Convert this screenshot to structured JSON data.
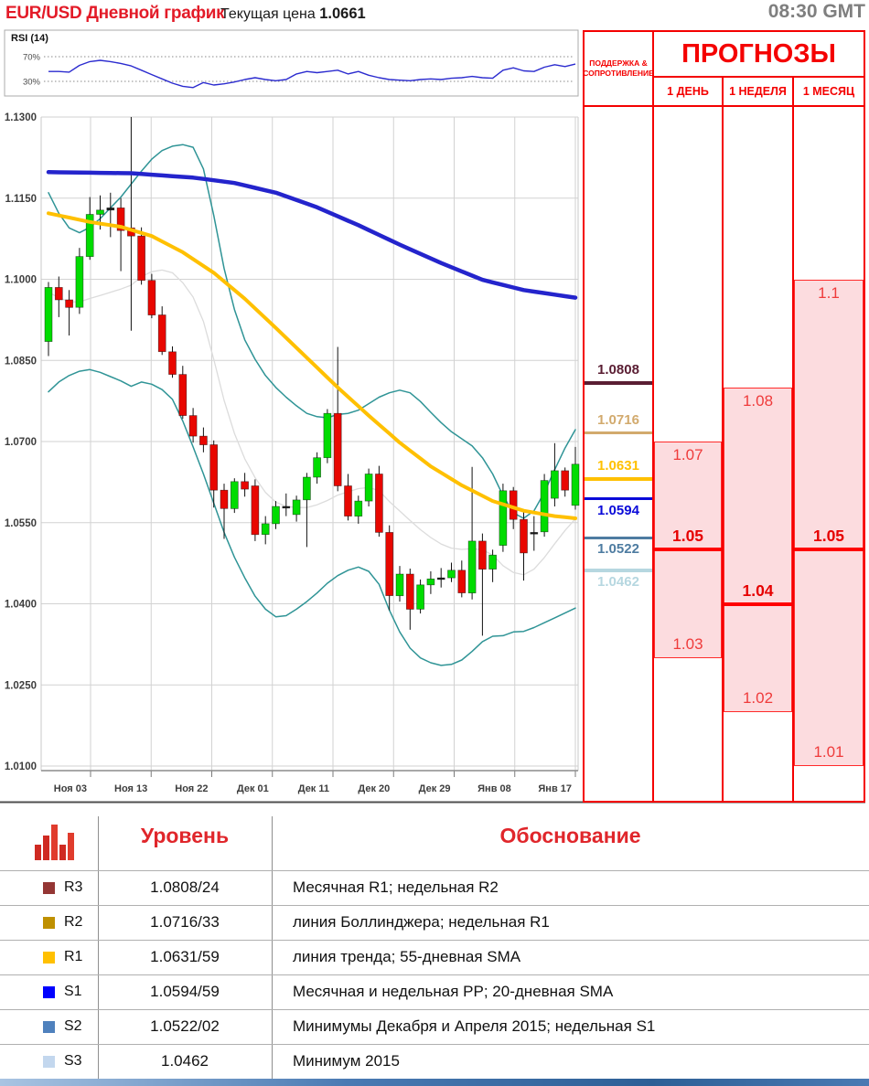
{
  "header": {
    "title": "EUR/USD Дневной график",
    "price_label": "Текущая цена",
    "price_value": "1.0661",
    "time": "08:30 GMT"
  },
  "forecast": {
    "title": "ПРОГНОЗЫ",
    "sr_header_line1": "ПОДДЕРЖКА &",
    "sr_header_line2": "СОПРОТИВЛЕНИЕ",
    "columns": [
      {
        "label": "1 ДЕНЬ",
        "high": 1.07,
        "low": 1.03,
        "pivot": 1.05,
        "high_label": "1.07",
        "low_label": "1.03",
        "pivot_label": "1.05"
      },
      {
        "label": "1 НЕДЕЛЯ",
        "high": 1.08,
        "low": 1.02,
        "pivot": 1.04,
        "high_label": "1.08",
        "low_label": "1.02",
        "pivot_label": "1.04"
      },
      {
        "label": "1 МЕСЯЦ",
        "high": 1.1,
        "low": 1.01,
        "pivot": 1.05,
        "high_label": "1.1",
        "low_label": "1.01",
        "pivot_label": "1.05"
      }
    ]
  },
  "support_resistance": {
    "levels": [
      {
        "id": "R3",
        "price": 1.0808,
        "label": "1.0808",
        "color": "#5a1e33",
        "label_side": "above"
      },
      {
        "id": "R2",
        "price": 1.0716,
        "label": "1.0716",
        "color": "#d2aa6d",
        "label_side": "above"
      },
      {
        "id": "R1",
        "price": 1.0631,
        "label": "1.0631",
        "color": "#ffc000",
        "label_side": "above"
      },
      {
        "id": "S1",
        "price": 1.0594,
        "label": "1.0594",
        "color": "#0a0ad9",
        "label_side": "below"
      },
      {
        "id": "S2",
        "price": 1.0522,
        "label": "1.0522",
        "color": "#4e7ca1",
        "label_side": "below"
      },
      {
        "id": "S3",
        "price": 1.0462,
        "label": "1.0462",
        "color": "#b6d7e0",
        "label_side": "below"
      }
    ]
  },
  "table": {
    "level_header": "Уровень",
    "reason_header": "Обоснование",
    "rows": [
      {
        "id": "R3",
        "swatch": "#943634",
        "level": "1.0808/24",
        "reason": "Месячная R1; недельная R2"
      },
      {
        "id": "R2",
        "swatch": "#bf9000",
        "level": "1.0716/33",
        "reason": "линия Боллинджера; недельная R1"
      },
      {
        "id": "R1",
        "swatch": "#ffc000",
        "level": "1.0631/59",
        "reason": "линия тренда; 55-дневная SMA"
      },
      {
        "id": "S1",
        "swatch": "#0000ff",
        "level": "1.0594/59",
        "reason": "Месячная  и недельная PP; 20-дневная SMA"
      },
      {
        "id": "S2",
        "swatch": "#4f81bd",
        "level": "1.0522/02",
        "reason": "Минимумы Декабря и Апреля 2015; недельная S1"
      },
      {
        "id": "S3",
        "swatch": "#c3d7ee",
        "level": "1.0462",
        "reason": "Минимум 2015"
      }
    ]
  },
  "chart_data": {
    "type": "candlestick",
    "title": "EUR/USD Дневной график",
    "x_labels": [
      "Ноя 03",
      "Ноя 13",
      "Ноя 22",
      "Дек 01",
      "Дек 11",
      "Дек 20",
      "Дек 29",
      "Янв 08",
      "Янв 17"
    ],
    "y_tick_labels": [
      "1.1300",
      "1.1150",
      "1.1000",
      "1.0850",
      "1.0700",
      "1.0550",
      "1.0400",
      "1.0250",
      "1.0100"
    ],
    "ylim": [
      1.01,
      1.13
    ],
    "grid": true,
    "up_color": "#00dc00",
    "down_color": "#e80700",
    "wick_color": "#111111",
    "candles": [
      [
        1.0885,
        1.0995,
        1.0858,
        1.0985
      ],
      [
        1.0985,
        1.1005,
        1.093,
        1.0962
      ],
      [
        1.0962,
        1.098,
        1.0896,
        1.0948
      ],
      [
        1.0948,
        1.1058,
        1.0936,
        1.1042
      ],
      [
        1.1042,
        1.1152,
        1.1036,
        1.112
      ],
      [
        1.112,
        1.1155,
        1.1092,
        1.1128
      ],
      [
        1.1128,
        1.116,
        1.1078,
        1.1132
      ],
      [
        1.1132,
        1.115,
        1.1015,
        1.109
      ],
      [
        1.1095,
        1.13,
        1.0905,
        1.108
      ],
      [
        1.108,
        1.1096,
        1.099,
        1.0998
      ],
      [
        1.0998,
        1.101,
        1.0928,
        1.0934
      ],
      [
        1.0934,
        1.095,
        1.086,
        1.0866
      ],
      [
        1.0866,
        1.0876,
        1.0818,
        1.0824
      ],
      [
        1.0824,
        1.084,
        1.0742,
        1.0748
      ],
      [
        1.0748,
        1.0762,
        1.0698,
        1.071
      ],
      [
        1.071,
        1.0726,
        1.068,
        1.0694
      ],
      [
        1.0694,
        1.0702,
        1.0578,
        1.061
      ],
      [
        1.061,
        1.0622,
        1.052,
        1.0576
      ],
      [
        1.0576,
        1.0632,
        1.0568,
        1.0626
      ],
      [
        1.0626,
        1.0642,
        1.0598,
        1.0612
      ],
      [
        1.0618,
        1.063,
        1.0516,
        1.0528
      ],
      [
        1.0528,
        1.0562,
        1.051,
        1.0548
      ],
      [
        1.0548,
        1.059,
        1.0538,
        1.058
      ],
      [
        1.058,
        1.0604,
        1.0562,
        1.0578
      ],
      [
        1.0565,
        1.06,
        1.0552,
        1.0592
      ],
      [
        1.0592,
        1.0642,
        1.0505,
        1.0634
      ],
      [
        1.0634,
        1.068,
        1.0622,
        1.067
      ],
      [
        1.067,
        1.076,
        1.066,
        1.0752
      ],
      [
        1.0752,
        1.0875,
        1.0608,
        1.0618
      ],
      [
        1.0618,
        1.064,
        1.0554,
        1.0562
      ],
      [
        1.0562,
        1.06,
        1.0548,
        1.059
      ],
      [
        1.059,
        1.065,
        1.058,
        1.064
      ],
      [
        1.064,
        1.0655,
        1.0524,
        1.0532
      ],
      [
        1.0532,
        1.0545,
        1.0388,
        1.0415
      ],
      [
        1.0415,
        1.047,
        1.0404,
        1.0455
      ],
      [
        1.0455,
        1.0465,
        1.0352,
        1.039
      ],
      [
        1.039,
        1.0445,
        1.0382,
        1.0435
      ],
      [
        1.0435,
        1.046,
        1.0418,
        1.0446
      ],
      [
        1.0446,
        1.0466,
        1.043,
        1.0448
      ],
      [
        1.0448,
        1.0476,
        1.044,
        1.0462
      ],
      [
        1.0462,
        1.048,
        1.0412,
        1.042
      ],
      [
        1.042,
        1.0653,
        1.0408,
        1.0516
      ],
      [
        1.0516,
        1.053,
        1.0341,
        1.0464
      ],
      [
        1.0464,
        1.05,
        1.044,
        1.049
      ],
      [
        1.0508,
        1.0622,
        1.0496,
        1.0609
      ],
      [
        1.0609,
        1.0616,
        1.0538,
        1.0556
      ],
      [
        1.0556,
        1.0574,
        1.0443,
        1.0494
      ],
      [
        1.0531,
        1.0562,
        1.0498,
        1.0532
      ],
      [
        1.0533,
        1.064,
        1.0524,
        1.0628
      ],
      [
        1.0595,
        1.0697,
        1.058,
        1.0646
      ],
      [
        1.0646,
        1.0652,
        1.0598,
        1.061
      ],
      [
        1.0582,
        1.069,
        1.0574,
        1.0658
      ]
    ],
    "series": [
      {
        "name": "bollinger-upper",
        "color": "#2f9496",
        "width": 1.5,
        "values": [
          1.116,
          1.1122,
          1.1095,
          1.1086,
          1.1096,
          1.1112,
          1.1132,
          1.1152,
          1.1176,
          1.12,
          1.1222,
          1.1238,
          1.1246,
          1.1249,
          1.1244,
          1.1204,
          1.1118,
          1.102,
          1.0944,
          1.0888,
          1.0852,
          1.0822,
          1.08,
          1.0782,
          1.0766,
          1.0752,
          1.0746,
          1.0744,
          1.075,
          1.0752,
          1.0758,
          1.077,
          1.0782,
          1.079,
          1.0795,
          1.079,
          1.0774,
          1.0754,
          1.0735,
          1.0718,
          1.0705,
          1.0692,
          1.067,
          1.064,
          1.06,
          1.0568,
          1.0558,
          1.0572,
          1.0606,
          1.0648,
          1.0688,
          1.0722
        ]
      },
      {
        "name": "bollinger-lower",
        "color": "#2f9496",
        "width": 1.5,
        "values": [
          1.0792,
          1.081,
          1.0822,
          1.083,
          1.0833,
          1.0828,
          1.082,
          1.0812,
          1.0802,
          1.081,
          1.0806,
          1.0796,
          1.0778,
          1.0738,
          1.069,
          1.064,
          1.0586,
          1.0532,
          1.0486,
          1.0448,
          1.0414,
          1.039,
          1.0376,
          1.0378,
          1.039,
          1.0404,
          1.042,
          1.0438,
          1.0452,
          1.0462,
          1.0468,
          1.046,
          1.0436,
          1.0388,
          1.0348,
          1.0318,
          1.03,
          1.0291,
          1.0286,
          1.0288,
          1.0296,
          1.0312,
          1.033,
          1.034,
          1.0341,
          1.0348,
          1.0349,
          1.0356,
          1.0365,
          1.0374,
          1.0383,
          1.0392
        ]
      },
      {
        "name": "sma-55",
        "color": "#ffc000",
        "width": 4,
        "points": [
          [
            0,
            1.1122
          ],
          [
            4,
            1.1106
          ],
          [
            7,
            1.1097
          ],
          [
            10,
            1.108
          ],
          [
            13,
            1.105
          ],
          [
            16,
            1.1012
          ],
          [
            19,
            1.0964
          ],
          [
            22,
            1.091
          ],
          [
            25,
            1.0855
          ],
          [
            28,
            1.08
          ],
          [
            31,
            1.0748
          ],
          [
            34,
            1.0698
          ],
          [
            37,
            1.0654
          ],
          [
            40,
            1.0619
          ],
          [
            43,
            1.059
          ],
          [
            46,
            1.0572
          ],
          [
            49,
            1.0562
          ],
          [
            51,
            1.0558
          ]
        ]
      },
      {
        "name": "sma-100",
        "color": "#2424cc",
        "width": 4.5,
        "points": [
          [
            0,
            1.1198
          ],
          [
            8,
            1.1196
          ],
          [
            14,
            1.1188
          ],
          [
            18,
            1.1178
          ],
          [
            22,
            1.116
          ],
          [
            26,
            1.1133
          ],
          [
            30,
            1.11
          ],
          [
            34,
            1.1064
          ],
          [
            38,
            1.103
          ],
          [
            42,
            1.0999
          ],
          [
            46,
            1.098
          ],
          [
            51,
            1.0966
          ]
        ]
      }
    ],
    "rsi": {
      "label": "RSI (14)",
      "levels": [
        70,
        30
      ],
      "level_labels": [
        "70%",
        "30%"
      ],
      "values": [
        46,
        46,
        45,
        56,
        62,
        64,
        62,
        59,
        55,
        48,
        41,
        34,
        27,
        22,
        20,
        28,
        24,
        26,
        29,
        33,
        36,
        33,
        31,
        33,
        42,
        46,
        44,
        46,
        48,
        42,
        46,
        40,
        36,
        33,
        32,
        31,
        33,
        34,
        33,
        35,
        36,
        38,
        36,
        35,
        48,
        52,
        47,
        46,
        53,
        57,
        54,
        58
      ]
    }
  }
}
